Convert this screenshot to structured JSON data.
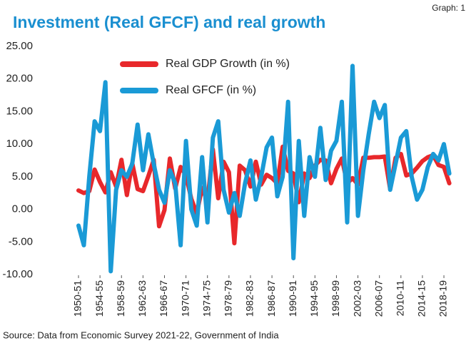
{
  "chart_data": {
    "type": "line",
    "title": "Investment (Real GFCF) and real growth",
    "graph_label": "Graph: 1",
    "source": "Source: Data from Economic Survey 2021-22, Government of India",
    "categories": [
      "1950-51",
      null,
      null,
      null,
      "1954-55",
      null,
      null,
      null,
      "1958-59",
      null,
      null,
      null,
      "1962-63",
      null,
      null,
      null,
      "1966-67",
      null,
      null,
      null,
      "1970-71",
      null,
      null,
      null,
      "1974-75",
      null,
      null,
      null,
      "1978-79",
      null,
      null,
      null,
      "1982-83",
      null,
      null,
      null,
      "1986-87",
      null,
      null,
      null,
      "1990-91",
      null,
      null,
      null,
      "1994-95",
      null,
      null,
      null,
      "1998-99",
      null,
      null,
      null,
      "2002-03",
      null,
      null,
      null,
      "2006-07",
      null,
      null,
      null,
      "2010-11",
      null,
      null,
      null,
      "2014-15",
      null,
      null,
      null,
      "2018-19",
      null
    ],
    "series": [
      {
        "name": "Real GDP Growth (in %)",
        "color": "#e8282b",
        "values": [
          2.9,
          2.5,
          2.8,
          6.1,
          4.2,
          2.6,
          5.7,
          3.5,
          7.6,
          2.2,
          7.1,
          3.1,
          2.8,
          5.1,
          7.6,
          -2.6,
          -0.1,
          7.8,
          3.2,
          6.5,
          5.2,
          1.6,
          -0.6,
          3.3,
          1.2,
          9.2,
          1.7,
          7.3,
          5.7,
          -5.2,
          6.7,
          6.0,
          3.5,
          7.3,
          3.8,
          5.3,
          4.8,
          4.0,
          9.6,
          5.9,
          5.5,
          1.1,
          5.5,
          4.8,
          6.7,
          7.6,
          7.5,
          4.0,
          6.2,
          7.8,
          4.0,
          4.8,
          3.8,
          7.9,
          7.9,
          8.0,
          8.0,
          8.1,
          3.1,
          7.9,
          8.5,
          5.2,
          5.5,
          6.4,
          7.4,
          8.0,
          8.3,
          6.8,
          6.5,
          4.0
        ]
      },
      {
        "name": "Real GFCF  (in %)",
        "color": "#1a9ad6",
        "values": [
          -2.5,
          -5.5,
          5,
          13.5,
          12,
          19.5,
          -9.5,
          3,
          6,
          5,
          7,
          13,
          6,
          11.5,
          7,
          3,
          1,
          6,
          4,
          -5.5,
          10.5,
          0,
          -2.5,
          8,
          -2,
          11,
          13.5,
          3,
          -0.5,
          2.5,
          -1,
          4,
          7.5,
          1.5,
          5,
          9.5,
          11,
          2,
          5,
          16.5,
          -7.5,
          10.5,
          -1,
          8,
          5,
          12.5,
          4.5,
          9,
          10.5,
          16.5,
          -2,
          22,
          -1,
          6,
          11.5,
          16.5,
          14,
          16,
          3,
          7,
          11,
          12,
          5,
          1.5,
          3,
          6.5,
          8.5,
          7.5,
          10,
          5.5
        ]
      }
    ],
    "ylim": [
      -10,
      25
    ],
    "yticks": [
      {
        "value": -10,
        "label": "-10.00"
      },
      {
        "value": -5,
        "label": "-5.00"
      },
      {
        "value": 0,
        "label": "0.00"
      },
      {
        "value": 5,
        "label": "5.00"
      },
      {
        "value": 10,
        "label": "10.00"
      },
      {
        "value": 15,
        "label": "15.00"
      },
      {
        "value": 20,
        "label": "20.00"
      },
      {
        "value": 25,
        "label": "25.00"
      }
    ],
    "grid": false,
    "legend": "top-left"
  }
}
